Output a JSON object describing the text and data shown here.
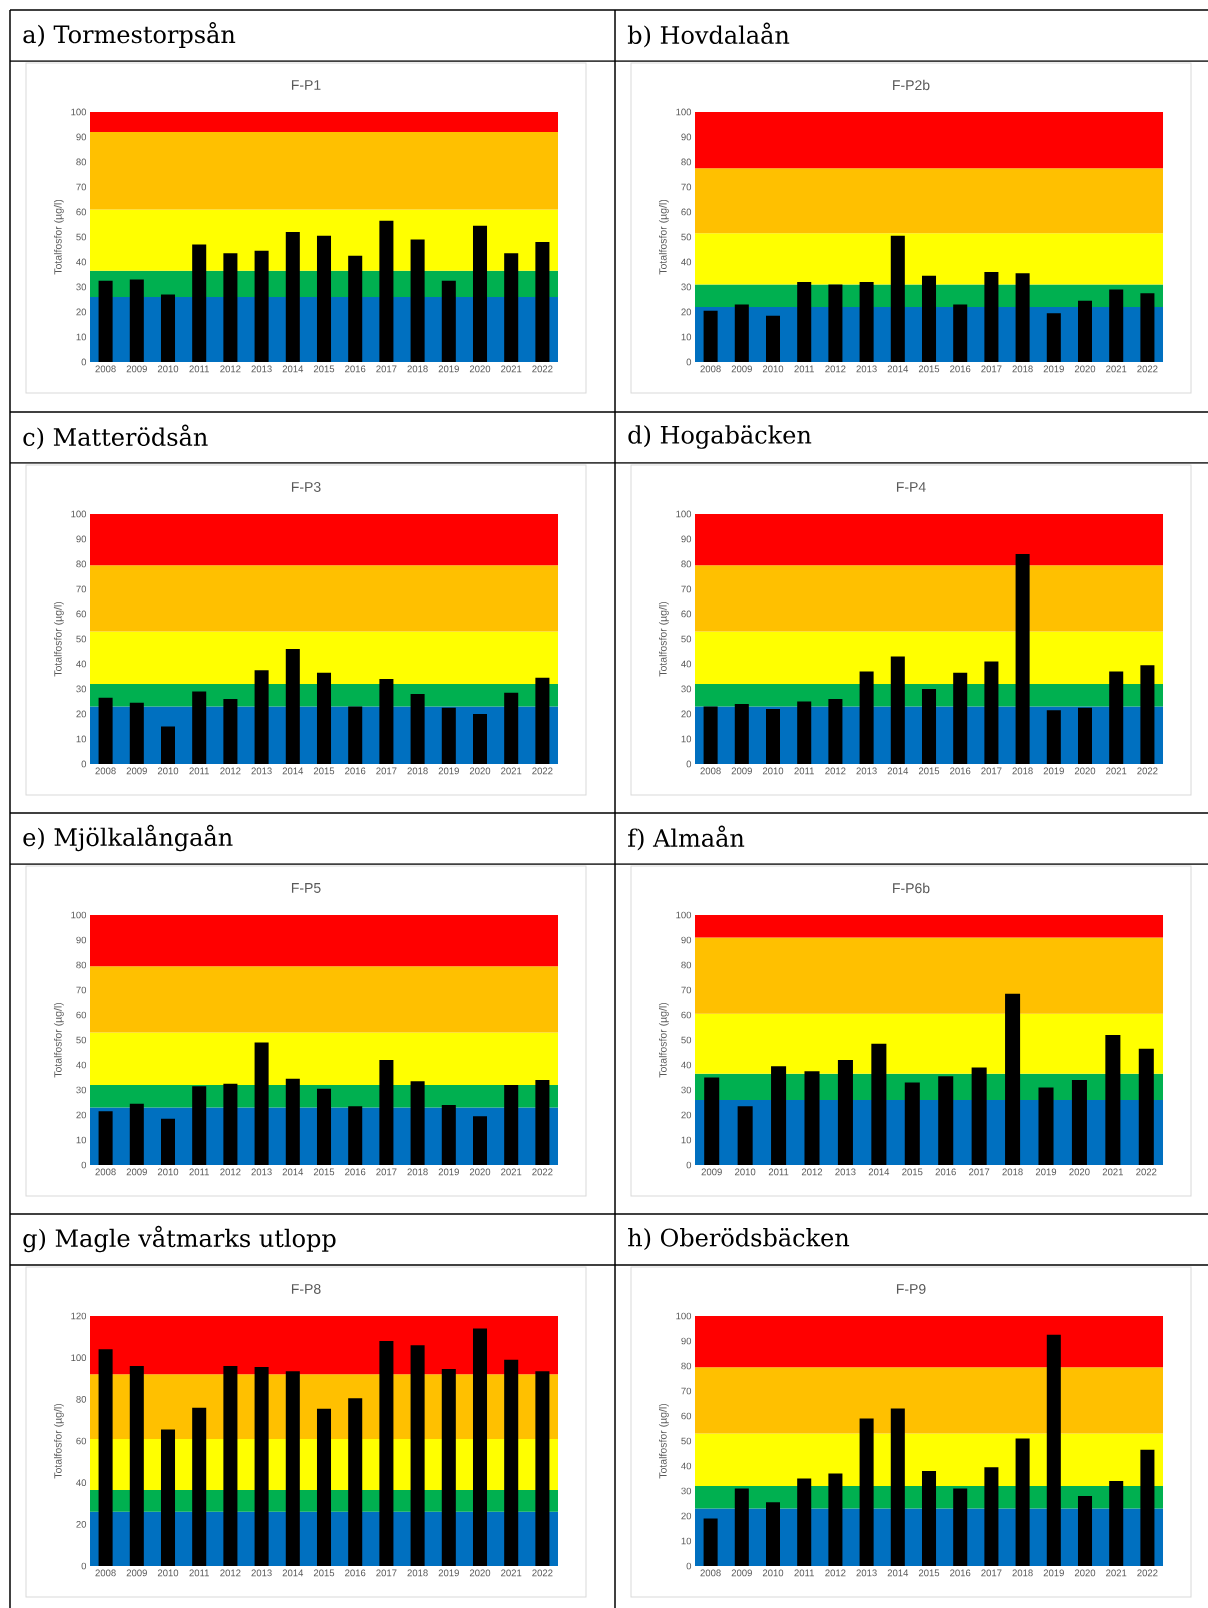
{
  "chart_data": [
    {
      "type": "bar",
      "title": "a) Tormestorpsån",
      "subtitle": "F-P1",
      "ylabel": "Totalfosfor (µg/l)",
      "color": "#000000",
      "categories": [
        "2008",
        "2009",
        "2010",
        "2011",
        "2012",
        "2013",
        "2014",
        "2015",
        "2016",
        "2017",
        "2018",
        "2019",
        "2020",
        "2021",
        "2022"
      ],
      "values": [
        32.5,
        33,
        27,
        47,
        43.5,
        44.5,
        52,
        50.5,
        42.5,
        56.5,
        49,
        32.5,
        54.5,
        43.5,
        48
      ],
      "ylim": [
        0,
        100
      ],
      "yticks": [
        0,
        10,
        20,
        30,
        40,
        50,
        60,
        70,
        80,
        90,
        100
      ],
      "bands": [
        {
          "axis": "y",
          "from": 0,
          "to": 26,
          "color": "#0070c0"
        },
        {
          "axis": "y",
          "from": 26,
          "to": 36.5,
          "color": "#00b050"
        },
        {
          "axis": "y",
          "from": 36.5,
          "to": 61,
          "color": "#ffff00"
        },
        {
          "axis": "y",
          "from": 61,
          "to": 92,
          "color": "#ffc000"
        },
        {
          "axis": "y",
          "from": 92,
          "to": 100,
          "color": "#ff0000"
        }
      ]
    },
    {
      "type": "bar",
      "title": "b) Hovdalaån",
      "subtitle": "F-P2b",
      "ylabel": "Totalfosfor (µg/l)",
      "color": "#000000",
      "categories": [
        "2008",
        "2009",
        "2010",
        "2011",
        "2012",
        "2013",
        "2014",
        "2015",
        "2016",
        "2017",
        "2018",
        "2019",
        "2020",
        "2021",
        "2022"
      ],
      "values": [
        20.5,
        23,
        18.5,
        32,
        31,
        32,
        50.5,
        34.5,
        23,
        36,
        35.5,
        19.5,
        24.5,
        29,
        27.5
      ],
      "ylim": [
        0,
        100
      ],
      "yticks": [
        0,
        10,
        20,
        30,
        40,
        50,
        60,
        70,
        80,
        90,
        100
      ],
      "bands": [
        {
          "axis": "y",
          "from": 0,
          "to": 22,
          "color": "#0070c0"
        },
        {
          "axis": "y",
          "from": 22,
          "to": 31,
          "color": "#00b050"
        },
        {
          "axis": "y",
          "from": 31,
          "to": 51.5,
          "color": "#ffff00"
        },
        {
          "axis": "y",
          "from": 51.5,
          "to": 77.5,
          "color": "#ffc000"
        },
        {
          "axis": "y",
          "from": 77.5,
          "to": 100,
          "color": "#ff0000"
        }
      ]
    },
    {
      "type": "bar",
      "title": "c) Matterödsån",
      "subtitle": "F-P3",
      "ylabel": "Totalfosfor (µg/l)",
      "color": "#000000",
      "categories": [
        "2008",
        "2009",
        "2010",
        "2011",
        "2012",
        "2013",
        "2014",
        "2015",
        "2016",
        "2017",
        "2018",
        "2019",
        "2020",
        "2021",
        "2022"
      ],
      "values": [
        26.5,
        24.5,
        15,
        29,
        26,
        37.5,
        46,
        36.5,
        23,
        34,
        28,
        22.5,
        20,
        28.5,
        34.5
      ],
      "ylim": [
        0,
        100
      ],
      "yticks": [
        0,
        10,
        20,
        30,
        40,
        50,
        60,
        70,
        80,
        90,
        100
      ],
      "bands": [
        {
          "axis": "y",
          "from": 0,
          "to": 23,
          "color": "#0070c0"
        },
        {
          "axis": "y",
          "from": 23,
          "to": 32,
          "color": "#00b050"
        },
        {
          "axis": "y",
          "from": 32,
          "to": 53,
          "color": "#ffff00"
        },
        {
          "axis": "y",
          "from": 53,
          "to": 79.5,
          "color": "#ffc000"
        },
        {
          "axis": "y",
          "from": 79.5,
          "to": 100,
          "color": "#ff0000"
        }
      ]
    },
    {
      "type": "bar",
      "title": "d) Hogabäcken",
      "subtitle": "F-P4",
      "ylabel": "Totalfosfor (µg/l)",
      "color": "#000000",
      "categories": [
        "2008",
        "2009",
        "2010",
        "2011",
        "2012",
        "2013",
        "2014",
        "2015",
        "2016",
        "2017",
        "2018",
        "2019",
        "2020",
        "2021",
        "2022"
      ],
      "values": [
        23,
        24,
        22,
        25,
        26,
        37,
        43,
        30,
        36.5,
        41,
        84,
        21.5,
        22.5,
        37,
        39.5
      ],
      "ylim": [
        0,
        100
      ],
      "yticks": [
        0,
        10,
        20,
        30,
        40,
        50,
        60,
        70,
        80,
        90,
        100
      ],
      "bands": [
        {
          "axis": "y",
          "from": 0,
          "to": 23,
          "color": "#0070c0"
        },
        {
          "axis": "y",
          "from": 23,
          "to": 32,
          "color": "#00b050"
        },
        {
          "axis": "y",
          "from": 32,
          "to": 53,
          "color": "#ffff00"
        },
        {
          "axis": "y",
          "from": 53,
          "to": 79.5,
          "color": "#ffc000"
        },
        {
          "axis": "y",
          "from": 79.5,
          "to": 100,
          "color": "#ff0000"
        }
      ]
    },
    {
      "type": "bar",
      "title": "e) Mjölkalångaån",
      "subtitle": "F-P5",
      "ylabel": "Totalfosfor (µg/l)",
      "color": "#000000",
      "categories": [
        "2008",
        "2009",
        "2010",
        "2011",
        "2012",
        "2013",
        "2014",
        "2015",
        "2016",
        "2017",
        "2018",
        "2019",
        "2020",
        "2021",
        "2022"
      ],
      "values": [
        21.5,
        24.5,
        18.5,
        31.5,
        32.5,
        49,
        34.5,
        30.5,
        23.5,
        42,
        33.5,
        24,
        19.5,
        32,
        34
      ],
      "ylim": [
        0,
        100
      ],
      "yticks": [
        0,
        10,
        20,
        30,
        40,
        50,
        60,
        70,
        80,
        90,
        100
      ],
      "bands": [
        {
          "axis": "y",
          "from": 0,
          "to": 23,
          "color": "#0070c0"
        },
        {
          "axis": "y",
          "from": 23,
          "to": 32,
          "color": "#00b050"
        },
        {
          "axis": "y",
          "from": 32,
          "to": 53,
          "color": "#ffff00"
        },
        {
          "axis": "y",
          "from": 53,
          "to": 79.5,
          "color": "#ffc000"
        },
        {
          "axis": "y",
          "from": 79.5,
          "to": 100,
          "color": "#ff0000"
        }
      ]
    },
    {
      "type": "bar",
      "title": "f) Almaån",
      "subtitle": "F-P6b",
      "ylabel": "Totalfosfor (µg/l)",
      "color": "#000000",
      "categories": [
        "2009",
        "2010",
        "2011",
        "2012",
        "2013",
        "2014",
        "2015",
        "2016",
        "2017",
        "2018",
        "2019",
        "2020",
        "2021",
        "2022"
      ],
      "values": [
        35,
        23.5,
        39.5,
        37.5,
        42,
        48.5,
        33,
        35.5,
        39,
        68.5,
        31,
        34,
        52,
        46.5
      ],
      "ylim": [
        0,
        100
      ],
      "yticks": [
        0,
        10,
        20,
        30,
        40,
        50,
        60,
        70,
        80,
        90,
        100
      ],
      "bands": [
        {
          "axis": "y",
          "from": 0,
          "to": 26,
          "color": "#0070c0"
        },
        {
          "axis": "y",
          "from": 26,
          "to": 36.5,
          "color": "#00b050"
        },
        {
          "axis": "y",
          "from": 36.5,
          "to": 60.5,
          "color": "#ffff00"
        },
        {
          "axis": "y",
          "from": 60.5,
          "to": 91,
          "color": "#ffc000"
        },
        {
          "axis": "y",
          "from": 91,
          "to": 100,
          "color": "#ff0000"
        }
      ]
    },
    {
      "type": "bar",
      "title": "g) Magle våtmarks utlopp",
      "subtitle": "F-P8",
      "ylabel": "Totalfosfor (µg/l)",
      "color": "#000000",
      "categories": [
        "2008",
        "2009",
        "2010",
        "2011",
        "2012",
        "2013",
        "2014",
        "2015",
        "2016",
        "2017",
        "2018",
        "2019",
        "2020",
        "2021",
        "2022"
      ],
      "values": [
        104,
        96,
        65.5,
        76,
        96,
        95.5,
        93.5,
        75.5,
        80.5,
        108,
        106,
        94.5,
        114,
        99,
        93.5
      ],
      "ylim": [
        0,
        120
      ],
      "yticks": [
        0,
        20,
        40,
        60,
        80,
        100,
        120
      ],
      "bands": [
        {
          "axis": "y",
          "from": 0,
          "to": 26,
          "color": "#0070c0"
        },
        {
          "axis": "y",
          "from": 26,
          "to": 36.5,
          "color": "#00b050"
        },
        {
          "axis": "y",
          "from": 36.5,
          "to": 61,
          "color": "#ffff00"
        },
        {
          "axis": "y",
          "from": 61,
          "to": 92,
          "color": "#ffc000"
        },
        {
          "axis": "y",
          "from": 92,
          "to": 120,
          "color": "#ff0000"
        }
      ]
    },
    {
      "type": "bar",
      "title": "h) Oberödsbäcken",
      "subtitle": "F-P9",
      "ylabel": "Totalfosfor (µg/l)",
      "color": "#000000",
      "categories": [
        "2008",
        "2009",
        "2010",
        "2011",
        "2012",
        "2013",
        "2014",
        "2015",
        "2016",
        "2017",
        "2018",
        "2019",
        "2020",
        "2021",
        "2022"
      ],
      "values": [
        19,
        31,
        25.5,
        35,
        37,
        59,
        63,
        38,
        31,
        39.5,
        51,
        92.5,
        28,
        34,
        46.5
      ],
      "ylim": [
        0,
        100
      ],
      "yticks": [
        0,
        10,
        20,
        30,
        40,
        50,
        60,
        70,
        80,
        90,
        100
      ],
      "bands": [
        {
          "axis": "y",
          "from": 0,
          "to": 23,
          "color": "#0070c0"
        },
        {
          "axis": "y",
          "from": 23,
          "to": 32,
          "color": "#00b050"
        },
        {
          "axis": "y",
          "from": 32,
          "to": 53,
          "color": "#ffff00"
        },
        {
          "axis": "y",
          "from": 53,
          "to": 79.5,
          "color": "#ffc000"
        },
        {
          "axis": "y",
          "from": 79.5,
          "to": 100,
          "color": "#ff0000"
        }
      ]
    }
  ]
}
